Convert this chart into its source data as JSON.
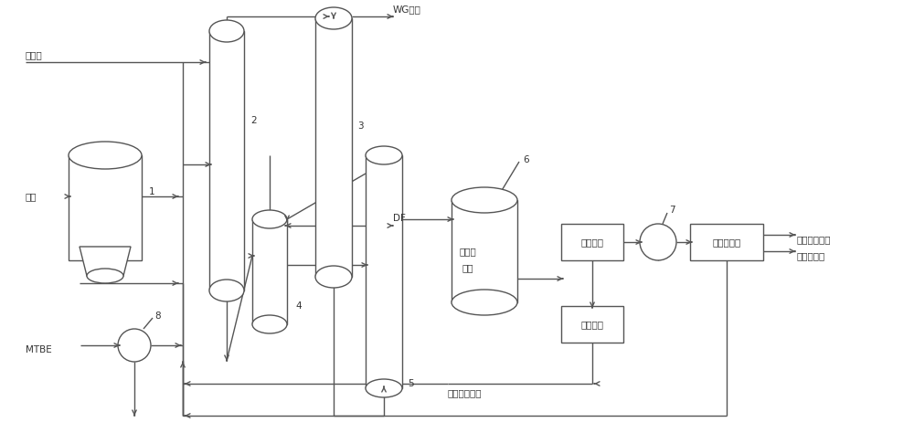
{
  "bg_color": "#ffffff",
  "line_color": "#555555",
  "line_width": 1.0,
  "labels": {
    "isooctanol": "异辛醇",
    "methanol": "甲醇",
    "mtbe": "MTBE",
    "wg": "WG处理",
    "df": "DF",
    "fluidized_bed_1": "流化床",
    "fluidized_bed_2": "反应",
    "cooling_absorption": "冷却吸收",
    "methanol_separation": "甲醇分离",
    "isobutylene_separation": "异丁烯分离",
    "cycle_to_oxidizer": "循环至氧化器",
    "isoprene_product": "异成二烯产品",
    "isobutylene_recycle": "异丁烯循环",
    "num1": "1",
    "num2": "2",
    "num3": "3",
    "num4": "4",
    "num5": "5",
    "num6": "6",
    "num7": "7",
    "num8": "8"
  },
  "font_size": 7.5,
  "font_family": "DejaVu Sans"
}
